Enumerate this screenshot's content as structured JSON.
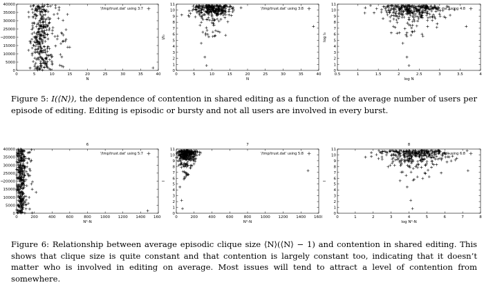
{
  "figure5": {
    "caption_label": "Figure 5:",
    "caption_math": "I(⟨N⟩),",
    "caption_text": "the dependence of contention in shared editing as a function of the average number of users per episode of editing. Editing is episodic or bursty and not all users are involved in every burst."
  },
  "figure6": {
    "caption_label": "Figure 6:",
    "caption_text": "Relationship between average episodic clique size ⟨N⟩(⟨N⟩ − 1) and contention in shared editing. This shows that clique size is quite constant and that contention is largely constant too, indicating that it doesn’t matter who is involved in editing on average. Most issues will tend to attract a level of contention from somewhere."
  },
  "chart_data": [
    {
      "type": "scatter",
      "panel": "fig5-left",
      "title": "",
      "legend": "'/tmp/trust.dat' using 3:7",
      "xlabel": "N",
      "ylabel": "I",
      "xlim": [
        0,
        40
      ],
      "ylim": [
        0,
        40000
      ],
      "xticks": [
        "0",
        "5",
        "10",
        "15",
        "20",
        "25",
        "30",
        "35",
        "40"
      ],
      "yticks": [
        "0",
        "5000",
        "10000",
        "15000",
        "20000",
        "25000",
        "30000",
        "35000",
        "40000"
      ],
      "marker": "+",
      "point_count": "approx 400",
      "x_range_of_bulk": [
        4,
        10
      ],
      "outliers": [
        [
          38.5,
          1500
        ],
        [
          15,
          14000
        ],
        [
          12,
          38000
        ]
      ]
    },
    {
      "type": "scatter",
      "panel": "fig5-middle",
      "title": "",
      "legend": "'/tmp/trust.dat' using 3:8",
      "xlabel": "N",
      "ylabel": "I/I₀",
      "xlim": [
        0,
        40
      ],
      "ylim": [
        0,
        11
      ],
      "xticks": [
        "0",
        "5",
        "10",
        "15",
        "20",
        "25",
        "30",
        "35",
        "40"
      ],
      "yticks": [
        "0",
        "1",
        "2",
        "3",
        "4",
        "5",
        "6",
        "7",
        "8",
        "9",
        "10",
        "11"
      ],
      "marker": "+",
      "point_count": "approx 350",
      "cluster": {
        "x": [
          5,
          15
        ],
        "y": [
          8.5,
          10.8
        ]
      },
      "outliers": [
        [
          8,
          2.2
        ],
        [
          8.5,
          0.8
        ],
        [
          7,
          4.5
        ],
        [
          38.5,
          7.3
        ]
      ]
    },
    {
      "type": "scatter",
      "panel": "fig5-right",
      "title": "",
      "legend": "'/tmp/trust.dat' using 4:8",
      "xlabel": "log N",
      "ylabel": "log I₀",
      "xlim": [
        0.5,
        4
      ],
      "ylim": [
        0,
        11
      ],
      "xticks": [
        "0.5",
        "1",
        "1.5",
        "2",
        "2.5",
        "3",
        "3.5",
        "4"
      ],
      "yticks": [
        "0",
        "1",
        "2",
        "3",
        "4",
        "5",
        "6",
        "7",
        "8",
        "9",
        "10",
        "11"
      ],
      "marker": "+",
      "point_count": "approx 350",
      "cluster": {
        "x": [
          1.5,
          3.2
        ],
        "y": [
          8.5,
          10.8
        ]
      },
      "outliers": [
        [
          2.2,
          2.2
        ],
        [
          2.25,
          0.8
        ],
        [
          2.1,
          4.5
        ],
        [
          3.65,
          7.3
        ]
      ]
    },
    {
      "type": "scatter",
      "panel": "fig6-left",
      "title": "6",
      "legend": "'/tmp/trust.dat' using 5:7",
      "xlabel": "N²-N",
      "ylabel": "I",
      "xlim": [
        0,
        1600
      ],
      "ylim": [
        0,
        40000
      ],
      "xticks": [
        "0",
        "200",
        "400",
        "600",
        "800",
        "1000",
        "1200",
        "1400",
        "1600"
      ],
      "yticks": [
        "0",
        "5000",
        "10000",
        "15000",
        "20000",
        "25000",
        "30000",
        "35000",
        "40000"
      ],
      "marker": "+",
      "point_count": "approx 400",
      "x_range_of_bulk": [
        0,
        100
      ],
      "outliers": [
        [
          1480,
          1500
        ],
        [
          220,
          13000
        ],
        [
          150,
          38000
        ]
      ]
    },
    {
      "type": "scatter",
      "panel": "fig6-middle",
      "title": "7",
      "legend": "'/tmp/trust.dat' using 5:8",
      "xlabel": "N²-N",
      "ylabel": "I",
      "xlim": [
        0,
        1600
      ],
      "ylim": [
        0,
        11
      ],
      "xticks": [
        "0",
        "200",
        "400",
        "600",
        "800",
        "1000",
        "1200",
        "1400",
        "1600"
      ],
      "yticks": [
        "0",
        "1",
        "2",
        "3",
        "4",
        "5",
        "6",
        "7",
        "8",
        "9",
        "10",
        "11"
      ],
      "marker": "+",
      "point_count": "approx 350",
      "cluster": {
        "x": [
          0,
          220
        ],
        "y": [
          8.5,
          10.8
        ]
      },
      "outliers": [
        [
          60,
          2.2
        ],
        [
          70,
          0.8
        ],
        [
          40,
          4.5
        ],
        [
          1480,
          7.3
        ]
      ]
    },
    {
      "type": "scatter",
      "panel": "fig6-right",
      "title": "8",
      "legend": "'/tmp/trust.dat' using 6:8",
      "xlabel": "log N²-N",
      "ylabel": "I",
      "xlim": [
        0,
        8
      ],
      "ylim": [
        0,
        11
      ],
      "xticks": [
        "0",
        "1",
        "2",
        "3",
        "4",
        "5",
        "6",
        "7",
        "8"
      ],
      "yticks": [
        "0",
        "1",
        "2",
        "3",
        "4",
        "5",
        "6",
        "7",
        "8",
        "9",
        "10",
        "11"
      ],
      "marker": "+",
      "point_count": "approx 350",
      "cluster": {
        "x": [
          2.5,
          6.2
        ],
        "y": [
          8.5,
          10.8
        ]
      },
      "outliers": [
        [
          4.1,
          2.2
        ],
        [
          4.2,
          0.8
        ],
        [
          3.9,
          4.5
        ],
        [
          7.3,
          7.3
        ]
      ]
    }
  ]
}
